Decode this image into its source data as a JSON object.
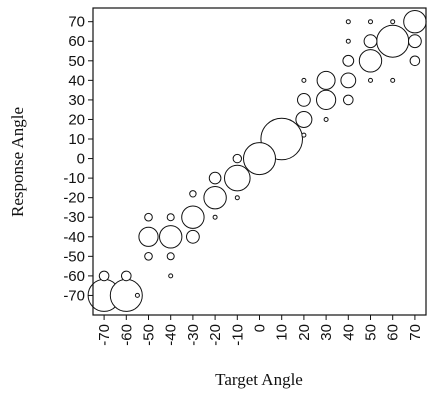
{
  "chart_data": {
    "type": "scatter",
    "title": "",
    "xlabel": "Target Angle",
    "ylabel": "Response Angle",
    "xlim": [
      -75,
      75
    ],
    "ylim": [
      -80,
      77
    ],
    "x_ticks": [
      -70,
      -60,
      -50,
      -40,
      -30,
      -20,
      -10,
      0,
      10,
      20,
      30,
      40,
      50,
      60,
      70
    ],
    "y_ticks": [
      70,
      60,
      50,
      40,
      30,
      20,
      10,
      0,
      -10,
      -20,
      -30,
      -40,
      -50,
      -60,
      -70
    ],
    "x_tick_labels": [
      "-70",
      "-60",
      "-50",
      "-40",
      "-30",
      "-20",
      "-10",
      "0",
      "10",
      "20",
      "30",
      "40",
      "50",
      "60",
      "70"
    ],
    "y_tick_labels": [
      "70",
      "60",
      "50",
      "40",
      "30",
      "20",
      "10",
      "0",
      "-10",
      "-20",
      "-30",
      "-40",
      "-50",
      "-60",
      "-70"
    ],
    "grid": false,
    "marker": "open circle, size proportional to frequency",
    "points": [
      {
        "x": -70,
        "y": -70,
        "size": 5
      },
      {
        "x": -70,
        "y": -60,
        "size": 1.5
      },
      {
        "x": -60,
        "y": -70,
        "size": 5
      },
      {
        "x": -60,
        "y": -60,
        "size": 1.5
      },
      {
        "x": -55,
        "y": -70,
        "size": 0.3
      },
      {
        "x": -50,
        "y": -40,
        "size": 3
      },
      {
        "x": -50,
        "y": -30,
        "size": 1.2
      },
      {
        "x": -50,
        "y": -50,
        "size": 1.2
      },
      {
        "x": -40,
        "y": -40,
        "size": 3.5
      },
      {
        "x": -40,
        "y": -30,
        "size": 1.1
      },
      {
        "x": -40,
        "y": -50,
        "size": 1.1
      },
      {
        "x": -40,
        "y": -60,
        "size": 0.5
      },
      {
        "x": -30,
        "y": -30,
        "size": 3.5
      },
      {
        "x": -30,
        "y": -40,
        "size": 2
      },
      {
        "x": -30,
        "y": -18,
        "size": 1
      },
      {
        "x": -20,
        "y": -20,
        "size": 3.5
      },
      {
        "x": -20,
        "y": -10,
        "size": 1.8
      },
      {
        "x": -20,
        "y": -30,
        "size": 0.5
      },
      {
        "x": -10,
        "y": -10,
        "size": 4
      },
      {
        "x": -10,
        "y": 0,
        "size": 1.3
      },
      {
        "x": -10,
        "y": -20,
        "size": 0.5
      },
      {
        "x": 0,
        "y": 0,
        "size": 5
      },
      {
        "x": 10,
        "y": 10,
        "size": 6.5
      },
      {
        "x": 20,
        "y": 20,
        "size": 2.5
      },
      {
        "x": 20,
        "y": 30,
        "size": 2
      },
      {
        "x": 20,
        "y": 40,
        "size": 0.5
      },
      {
        "x": 20,
        "y": 12,
        "size": 0.5
      },
      {
        "x": 30,
        "y": 30,
        "size": 3
      },
      {
        "x": 30,
        "y": 40,
        "size": 2.8
      },
      {
        "x": 30,
        "y": 20,
        "size": 0.5
      },
      {
        "x": 40,
        "y": 40,
        "size": 2.3
      },
      {
        "x": 40,
        "y": 50,
        "size": 1.7
      },
      {
        "x": 40,
        "y": 30,
        "size": 1.5
      },
      {
        "x": 40,
        "y": 60,
        "size": 0.5
      },
      {
        "x": 40,
        "y": 70,
        "size": 0.5
      },
      {
        "x": 50,
        "y": 50,
        "size": 3.5
      },
      {
        "x": 50,
        "y": 60,
        "size": 2
      },
      {
        "x": 50,
        "y": 40,
        "size": 0.5
      },
      {
        "x": 50,
        "y": 70,
        "size": 0.5
      },
      {
        "x": 60,
        "y": 60,
        "size": 5
      },
      {
        "x": 60,
        "y": 40,
        "size": 0.5
      },
      {
        "x": 60,
        "y": 70,
        "size": 0.5
      },
      {
        "x": 70,
        "y": 70,
        "size": 3.5
      },
      {
        "x": 70,
        "y": 60,
        "size": 2
      },
      {
        "x": 70,
        "y": 50,
        "size": 1.5
      }
    ]
  }
}
